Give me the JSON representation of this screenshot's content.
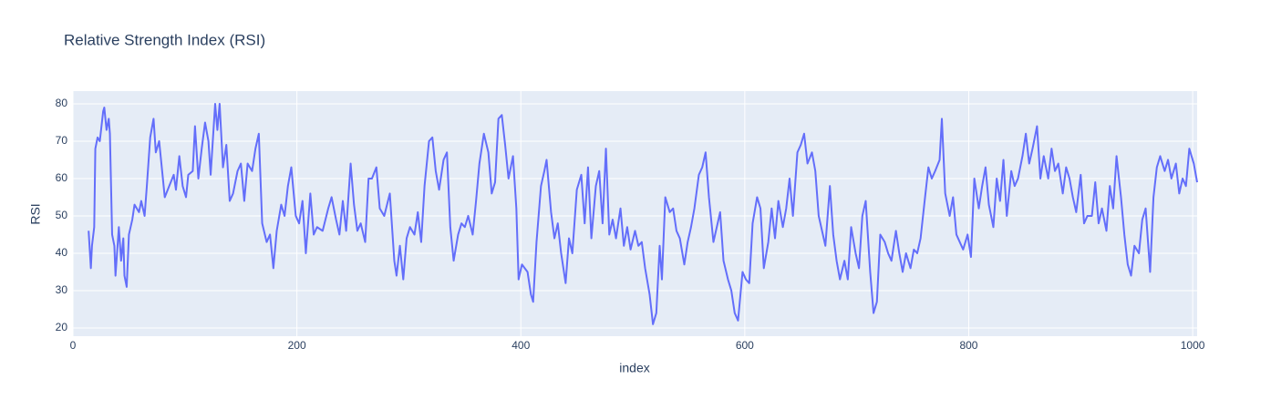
{
  "chart_data": {
    "type": "line",
    "title": "Relative Strength Index (RSI)",
    "x_label": "index",
    "y_label": "RSI",
    "color": "#636efa",
    "grid": true,
    "x": [
      14,
      16,
      17,
      19,
      20,
      22,
      24,
      27,
      28,
      30,
      32,
      33,
      35,
      37,
      38,
      41,
      43,
      45,
      46,
      48,
      50,
      53,
      55,
      59,
      61,
      64,
      66,
      69,
      72,
      74,
      77,
      80,
      82,
      86,
      90,
      92,
      95,
      98,
      101,
      103,
      107,
      109,
      112,
      115,
      118,
      121,
      123,
      127,
      129,
      131,
      134,
      137,
      140,
      143,
      147,
      150,
      153,
      156,
      160,
      163,
      166,
      169,
      173,
      176,
      179,
      182,
      186,
      189,
      192,
      195,
      199,
      202,
      205,
      208,
      212,
      215,
      218,
      223,
      228,
      231,
      235,
      238,
      241,
      244,
      248,
      251,
      254,
      257,
      261,
      264,
      267,
      271,
      274,
      278,
      283,
      287,
      289,
      292,
      295,
      298,
      301,
      305,
      308,
      311,
      314,
      318,
      321,
      324,
      327,
      331,
      334,
      337,
      340,
      344,
      347,
      350,
      353,
      357,
      360,
      363,
      367,
      371,
      374,
      377,
      380,
      383,
      386,
      389,
      393,
      396,
      398,
      401,
      406,
      409,
      411,
      414,
      418,
      421,
      423,
      427,
      430,
      433,
      436,
      440,
      443,
      446,
      450,
      454,
      457,
      460,
      463,
      467,
      470,
      473,
      476,
      479,
      482,
      485,
      489,
      492,
      495,
      498,
      502,
      505,
      508,
      511,
      515,
      518,
      521,
      524,
      526,
      529,
      533,
      536,
      539,
      542,
      546,
      549,
      552,
      555,
      559,
      562,
      565,
      568,
      572,
      575,
      578,
      581,
      585,
      588,
      591,
      594,
      598,
      601,
      604,
      607,
      611,
      614,
      617,
      621,
      624,
      627,
      630,
      634,
      637,
      640,
      643,
      647,
      650,
      653,
      656,
      660,
      663,
      666,
      669,
      672,
      676,
      679,
      682,
      685,
      689,
      692,
      695,
      699,
      702,
      705,
      708,
      712,
      715,
      718,
      721,
      725,
      728,
      731,
      735,
      738,
      741,
      744,
      748,
      751,
      754,
      757,
      761,
      764,
      767,
      770,
      774,
      776,
      779,
      783,
      786,
      789,
      792,
      795,
      799,
      802,
      805,
      809,
      812,
      815,
      818,
      822,
      825,
      828,
      831,
      834,
      838,
      841,
      844,
      848,
      851,
      854,
      857,
      861,
      864,
      867,
      871,
      874,
      877,
      880,
      884,
      887,
      890,
      893,
      896,
      900,
      903,
      906,
      910,
      913,
      916,
      919,
      923,
      926,
      929,
      932,
      936,
      939,
      942,
      945,
      948,
      952,
      955,
      958,
      962,
      965,
      968,
      971,
      975,
      978,
      981,
      985,
      988,
      991,
      994,
      997,
      1001,
      1004
    ],
    "values": [
      46,
      36,
      42,
      47,
      68,
      71,
      70,
      78,
      79,
      73,
      76,
      72,
      45,
      42,
      34,
      47,
      38,
      44,
      34,
      31,
      45,
      49,
      53,
      51,
      54,
      50,
      58,
      71,
      76,
      67,
      70,
      61,
      55,
      58,
      61,
      57,
      66,
      58,
      55,
      61,
      62,
      74,
      60,
      68,
      75,
      70,
      61,
      80,
      73,
      80,
      63,
      69,
      54,
      56,
      62,
      64,
      54,
      64,
      62,
      68,
      72,
      48,
      43,
      45,
      36,
      46,
      53,
      50,
      58,
      63,
      50,
      48,
      54,
      40,
      56,
      45,
      47,
      46,
      52,
      55,
      49,
      45,
      54,
      46,
      64,
      53,
      46,
      48,
      43,
      60,
      60,
      63,
      52,
      50,
      56,
      38,
      34,
      42,
      33,
      44,
      47,
      45,
      51,
      43,
      58,
      70,
      71,
      62,
      57,
      65,
      67,
      47,
      38,
      45,
      48,
      47,
      50,
      45,
      54,
      64,
      72,
      67,
      56,
      59,
      76,
      77,
      69,
      60,
      66,
      52,
      33,
      37,
      35,
      29,
      27,
      43,
      58,
      62,
      65,
      51,
      44,
      48,
      40,
      32,
      44,
      40,
      57,
      61,
      48,
      63,
      44,
      58,
      62,
      48,
      68,
      45,
      49,
      44,
      52,
      42,
      47,
      41,
      46,
      42,
      43,
      36,
      29,
      21,
      24,
      42,
      33,
      55,
      51,
      52,
      46,
      44,
      37,
      43,
      47,
      52,
      61,
      63,
      67,
      55,
      43,
      47,
      51,
      38,
      33,
      30,
      24,
      22,
      35,
      33,
      32,
      48,
      55,
      52,
      36,
      43,
      52,
      44,
      54,
      47,
      52,
      60,
      50,
      67,
      69,
      72,
      64,
      67,
      62,
      50,
      46,
      42,
      58,
      45,
      38,
      33,
      38,
      33,
      47,
      40,
      36,
      50,
      54,
      35,
      24,
      27,
      45,
      43,
      40,
      38,
      46,
      40,
      35,
      40,
      36,
      41,
      40,
      44,
      55,
      63,
      60,
      62,
      65,
      76,
      56,
      50,
      55,
      45,
      43,
      41,
      45,
      39,
      60,
      52,
      58,
      63,
      53,
      47,
      60,
      54,
      65,
      50,
      62,
      58,
      60,
      66,
      72,
      64,
      68,
      74,
      60,
      66,
      60,
      68,
      62,
      64,
      56,
      63,
      60,
      55,
      51,
      61,
      48,
      50,
      50,
      59,
      48,
      52,
      46,
      58,
      52,
      66,
      55,
      45,
      37,
      34,
      42,
      40,
      49,
      52,
      35,
      55,
      63,
      66,
      62,
      65,
      60,
      64,
      56,
      60,
      58,
      68,
      64,
      59
    ],
    "xlim": [
      0,
      1004
    ],
    "xticks": [
      0,
      200,
      400,
      600,
      800,
      1000
    ],
    "ylim": [
      17.8,
      83.4
    ],
    "yticks": [
      20,
      30,
      40,
      50,
      60,
      70,
      80
    ]
  }
}
